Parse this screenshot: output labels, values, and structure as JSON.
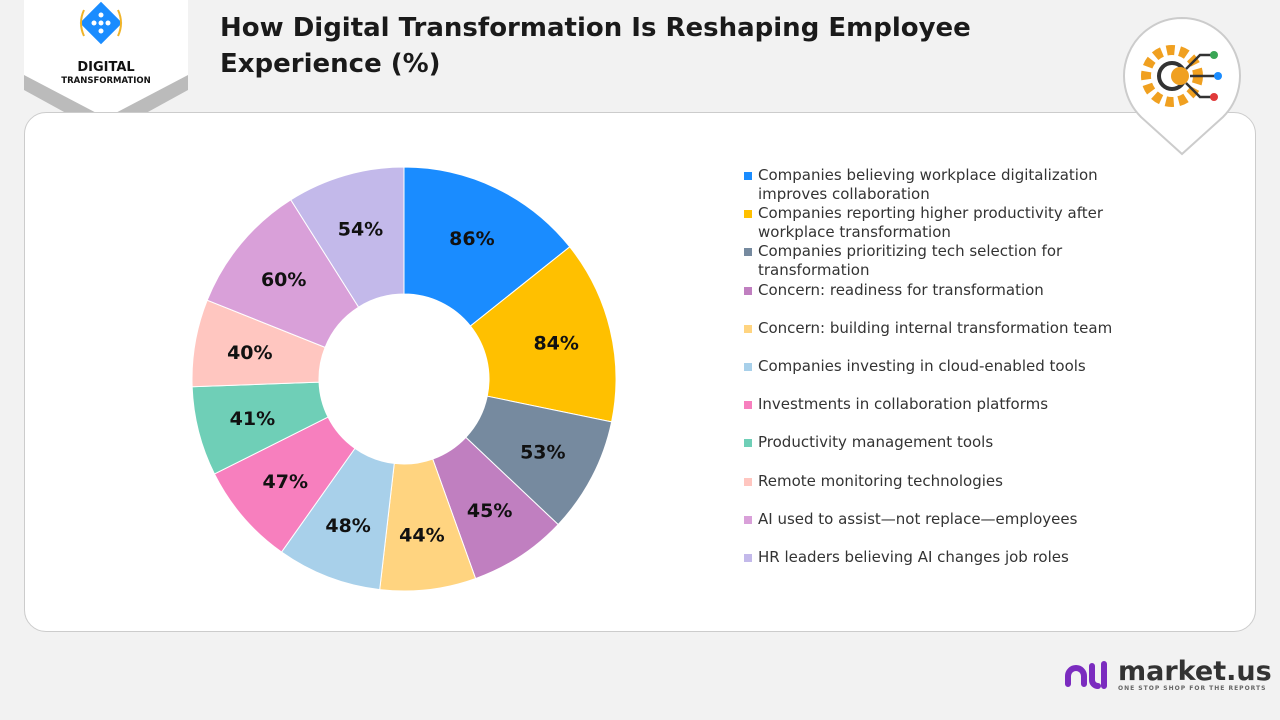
{
  "logo": {
    "line1": "DIGITAL",
    "line2": "TRANSFORMATION"
  },
  "brand": {
    "name": "market.us",
    "tagline": "ONE STOP SHOP FOR THE REPORTS",
    "accent": "#7b2cbf"
  },
  "chart_data": {
    "type": "pie",
    "donut": true,
    "title": "How Digital Transformation Is Reshaping Employee Experience (%)",
    "legend_position": "right",
    "categories": [
      "Companies believing workplace digitalization improves collaboration",
      "Companies reporting higher productivity after workplace transformation",
      "Companies prioritizing tech selection for transformation",
      "Concern: readiness for transformation",
      "Concern: building internal transformation team",
      "Companies investing in cloud-enabled tools",
      "Investments in collaboration platforms",
      "Productivity management tools",
      "Remote monitoring technologies",
      "AI used to assist—not replace—employees",
      "HR leaders believing AI changes job roles"
    ],
    "values": [
      86,
      84,
      53,
      45,
      44,
      48,
      47,
      41,
      40,
      60,
      54
    ],
    "labels": [
      "86%",
      "84%",
      "53%",
      "45%",
      "44%",
      "48%",
      "47%",
      "41%",
      "40%",
      "60%",
      "54%"
    ],
    "colors": [
      "#1a8cff",
      "#ffc000",
      "#768a9f",
      "#c07fc0",
      "#ffd480",
      "#a8d0ea",
      "#f77fbe",
      "#6fcfb7",
      "#ffc6c0",
      "#d9a0d9",
      "#c3b9ea"
    ]
  }
}
